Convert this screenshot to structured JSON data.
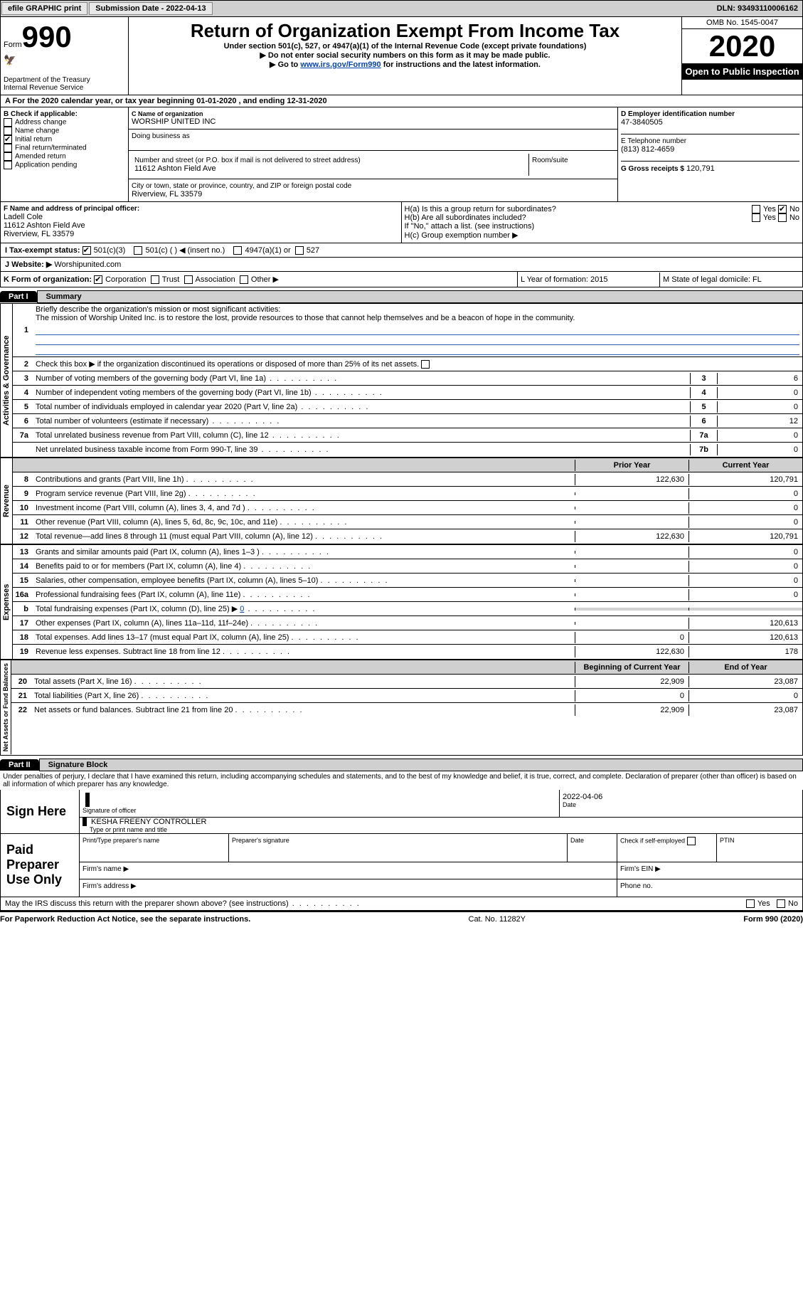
{
  "topbar": {
    "efile_label": "efile GRAPHIC print",
    "submission_label": "Submission Date - 2022-04-13",
    "dln_label": "DLN: 93493110006162"
  },
  "header": {
    "form_word": "Form",
    "form_num": "990",
    "dept": "Department of the Treasury",
    "irs": "Internal Revenue Service",
    "title": "Return of Organization Exempt From Income Tax",
    "sub1": "Under section 501(c), 527, or 4947(a)(1) of the Internal Revenue Code (except private foundations)",
    "sub2": "▶ Do not enter social security numbers on this form as it may be made public.",
    "sub3_pre": "▶ Go to ",
    "sub3_link": "www.irs.gov/Form990",
    "sub3_post": " for instructions and the latest information.",
    "omb": "OMB No. 1545-0047",
    "year": "2020",
    "inspect": "Open to Public Inspection"
  },
  "a_row": "A   For the 2020 calendar year, or tax year beginning 01-01-2020    , and ending 12-31-2020",
  "section_b": {
    "b_label": "B Check if applicable:",
    "b_items": [
      "Address change",
      "Name change",
      "Initial return",
      "Final return/terminated",
      "Amended return",
      "Application pending"
    ],
    "b_checked": [
      false,
      false,
      true,
      false,
      false,
      false
    ],
    "c_label": "C Name of organization",
    "c_name": "WORSHIP UNITED INC",
    "dba_label": "Doing business as",
    "addr_label": "Number and street (or P.O. box if mail is not delivered to street address)",
    "room_label": "Room/suite",
    "addr": "11612 Ashton Field Ave",
    "city_label": "City or town, state or province, country, and ZIP or foreign postal code",
    "city": "Riverview, FL  33579",
    "d_label": "D Employer identification number",
    "d_val": "47-3840505",
    "e_label": "E Telephone number",
    "e_val": "(813) 812-4659",
    "g_label": "G Gross receipts $",
    "g_val": "120,791"
  },
  "section_f": {
    "f_label": "F  Name and address of principal officer:",
    "f_name": "Ladell Cole",
    "f_addr1": "11612 Ashton Field Ave",
    "f_addr2": "Riverview, FL  33579",
    "ha_label": "H(a)  Is this a group return for subordinates?",
    "hb_label": "H(b)  Are all subordinates included?",
    "h_note": "If \"No,\" attach a list. (see instructions)",
    "hc_label": "H(c)  Group exemption number ▶",
    "yes": "Yes",
    "no": "No"
  },
  "section_i": {
    "i_label": "I   Tax-exempt status:",
    "i_501c3": "501(c)(3)",
    "i_501c": "501(c) (  ) ◀ (insert no.)",
    "i_4947": "4947(a)(1) or",
    "i_527": "527"
  },
  "section_j": {
    "j_label": "J   Website: ▶",
    "j_val": "Worshipunited.com"
  },
  "section_k": {
    "k_label": "K Form of organization:",
    "k_corp": "Corporation",
    "k_trust": "Trust",
    "k_assoc": "Association",
    "k_other": "Other ▶",
    "l_label": "L Year of formation: 2015",
    "m_label": "M State of legal domicile: FL"
  },
  "part1": {
    "tab": "Part I",
    "title": "Summary",
    "side1": "Activities & Governance",
    "side2": "Revenue",
    "side3": "Expenses",
    "side4": "Net Assets or Fund Balances",
    "l1_label": "Briefly describe the organization's mission or most significant activities:",
    "l1_text": "The mission of Worship United Inc. is to restore the lost, provide resources to those that cannot help themselves and be a beacon of hope in the community.",
    "l2": "Check this box ▶      if the organization discontinued its operations or disposed of more than 25% of its net assets.",
    "lines_gov": [
      {
        "n": "3",
        "d": "Number of voting members of the governing body (Part VI, line 1a)",
        "b": "3",
        "v": "6"
      },
      {
        "n": "4",
        "d": "Number of independent voting members of the governing body (Part VI, line 1b)",
        "b": "4",
        "v": "0"
      },
      {
        "n": "5",
        "d": "Total number of individuals employed in calendar year 2020 (Part V, line 2a)",
        "b": "5",
        "v": "0"
      },
      {
        "n": "6",
        "d": "Total number of volunteers (estimate if necessary)",
        "b": "6",
        "v": "12"
      },
      {
        "n": "7a",
        "d": "Total unrelated business revenue from Part VIII, column (C), line 12",
        "b": "7a",
        "v": "0"
      },
      {
        "n": "",
        "d": "Net unrelated business taxable income from Form 990-T, line 39",
        "b": "7b",
        "v": "0"
      }
    ],
    "col_prior": "Prior Year",
    "col_curr": "Current Year",
    "col_begin": "Beginning of Current Year",
    "col_end": "End of Year",
    "lines_rev": [
      {
        "n": "8",
        "d": "Contributions and grants (Part VIII, line 1h)",
        "p": "122,630",
        "c": "120,791"
      },
      {
        "n": "9",
        "d": "Program service revenue (Part VIII, line 2g)",
        "p": "",
        "c": "0"
      },
      {
        "n": "10",
        "d": "Investment income (Part VIII, column (A), lines 3, 4, and 7d )",
        "p": "",
        "c": "0"
      },
      {
        "n": "11",
        "d": "Other revenue (Part VIII, column (A), lines 5, 6d, 8c, 9c, 10c, and 11e)",
        "p": "",
        "c": "0"
      },
      {
        "n": "12",
        "d": "Total revenue—add lines 8 through 11 (must equal Part VIII, column (A), line 12)",
        "p": "122,630",
        "c": "120,791"
      }
    ],
    "lines_exp": [
      {
        "n": "13",
        "d": "Grants and similar amounts paid (Part IX, column (A), lines 1–3 )",
        "p": "",
        "c": "0"
      },
      {
        "n": "14",
        "d": "Benefits paid to or for members (Part IX, column (A), line 4)",
        "p": "",
        "c": "0"
      },
      {
        "n": "15",
        "d": "Salaries, other compensation, employee benefits (Part IX, column (A), lines 5–10)",
        "p": "",
        "c": "0"
      },
      {
        "n": "16a",
        "d": "Professional fundraising fees (Part IX, column (A), line 11e)",
        "p": "",
        "c": "0"
      },
      {
        "n": "b",
        "d": "Total fundraising expenses (Part IX, column (D), line 25) ▶",
        "p": "shaded",
        "c": "shaded",
        "extra": "0"
      },
      {
        "n": "17",
        "d": "Other expenses (Part IX, column (A), lines 11a–11d, 11f–24e)",
        "p": "",
        "c": "120,613"
      },
      {
        "n": "18",
        "d": "Total expenses. Add lines 13–17 (must equal Part IX, column (A), line 25)",
        "p": "0",
        "c": "120,613"
      },
      {
        "n": "19",
        "d": "Revenue less expenses. Subtract line 18 from line 12",
        "p": "122,630",
        "c": "178"
      }
    ],
    "lines_net": [
      {
        "n": "20",
        "d": "Total assets (Part X, line 16)",
        "p": "22,909",
        "c": "23,087"
      },
      {
        "n": "21",
        "d": "Total liabilities (Part X, line 26)",
        "p": "0",
        "c": "0"
      },
      {
        "n": "22",
        "d": "Net assets or fund balances. Subtract line 21 from line 20",
        "p": "22,909",
        "c": "23,087"
      }
    ]
  },
  "part2": {
    "tab": "Part II",
    "title": "Signature Block",
    "decl": "Under penalties of perjury, I declare that I have examined this return, including accompanying schedules and statements, and to the best of my knowledge and belief, it is true, correct, and complete. Declaration of preparer (other than officer) is based on all information of which preparer has any knowledge.",
    "sign_here": "Sign Here",
    "sig_officer": "Signature of officer",
    "sig_date": "Date",
    "sig_date_val": "2022-04-06",
    "sig_name": "KESHA FREENY  CONTROLLER",
    "sig_name_label": "Type or print name and title",
    "paid": "Paid Preparer Use Only",
    "pp_name": "Print/Type preparer's name",
    "pp_sig": "Preparer's signature",
    "pp_date": "Date",
    "pp_check": "Check        if self-employed",
    "pp_ptin": "PTIN",
    "firm_name": "Firm's name   ▶",
    "firm_ein": "Firm's EIN ▶",
    "firm_addr": "Firm's address ▶",
    "phone": "Phone no."
  },
  "bottom": {
    "discuss": "May the IRS discuss this return with the preparer shown above? (see instructions)",
    "yes": "Yes",
    "no": "No",
    "paperwork": "For Paperwork Reduction Act Notice, see the separate instructions.",
    "cat": "Cat. No. 11282Y",
    "form": "Form 990 (2020)"
  }
}
